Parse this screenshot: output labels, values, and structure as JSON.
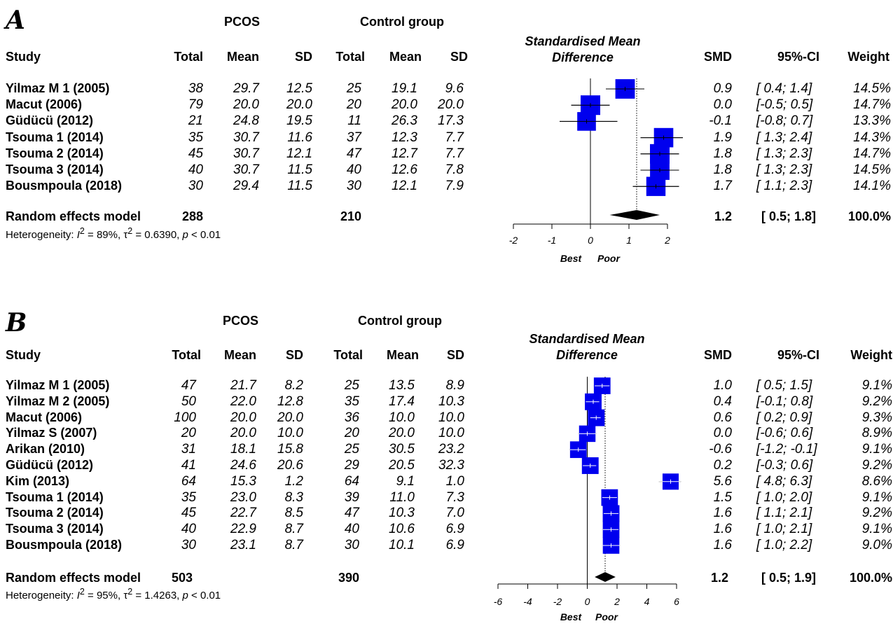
{
  "panels": [
    {
      "letter": "A",
      "group1": "PCOS",
      "group2": "Control group",
      "headers": {
        "study": "Study",
        "total1": "Total",
        "mean1": "Mean",
        "sd1": "SD",
        "total2": "Total",
        "mean2": "Mean",
        "sd2": "SD",
        "plot_line1": "Standardised Mean",
        "plot_line2": "Difference",
        "smd": "SMD",
        "ci": "95%-CI",
        "weight": "Weight"
      },
      "rows": [
        {
          "study": "Yilmaz M 1 (2005)",
          "t1": "38",
          "m1": "29.7",
          "s1": "12.5",
          "t2": "25",
          "m2": "19.1",
          "s2": "9.6",
          "smd": "0.9",
          "ci": "[ 0.4; 1.4]",
          "w": "14.5%"
        },
        {
          "study": "Macut (2006)",
          "t1": "79",
          "m1": "20.0",
          "s1": "20.0",
          "t2": "20",
          "m2": "20.0",
          "s2": "20.0",
          "smd": "0.0",
          "ci": "[-0.5; 0.5]",
          "w": "14.7%"
        },
        {
          "study": "Güdücü (2012)",
          "t1": "21",
          "m1": "24.8",
          "s1": "19.5",
          "t2": "11",
          "m2": "26.3",
          "s2": "17.3",
          "smd": "-0.1",
          "ci": "[-0.8; 0.7]",
          "w": "13.3%"
        },
        {
          "study": "Tsouma 1 (2014)",
          "t1": "35",
          "m1": "30.7",
          "s1": "11.6",
          "t2": "37",
          "m2": "12.3",
          "s2": "7.7",
          "smd": "1.9",
          "ci": "[ 1.3; 2.4]",
          "w": "14.3%"
        },
        {
          "study": "Tsouma 2 (2014)",
          "t1": "45",
          "m1": "30.7",
          "s1": "12.1",
          "t2": "47",
          "m2": "12.7",
          "s2": "7.7",
          "smd": "1.8",
          "ci": "[ 1.3; 2.3]",
          "w": "14.7%"
        },
        {
          "study": "Tsouma 3 (2014)",
          "t1": "40",
          "m1": "30.7",
          "s1": "11.5",
          "t2": "40",
          "m2": "12.6",
          "s2": "7.8",
          "smd": "1.8",
          "ci": "[ 1.3; 2.3]",
          "w": "14.5%"
        },
        {
          "study": "Bousmpoula  (2018)",
          "t1": "30",
          "m1": "29.4",
          "s1": "11.5",
          "t2": "30",
          "m2": "12.1",
          "s2": "7.9",
          "smd": "1.7",
          "ci": "[ 1.1; 2.3]",
          "w": "14.1%"
        }
      ],
      "model": {
        "label": "Random effects model",
        "t1": "288",
        "t2": "210",
        "smd": "1.2",
        "ci": "[ 0.5; 1.8]",
        "w": "100.0%"
      },
      "heterogeneity": {
        "prefix": "Heterogeneity: ",
        "i2_symbol": "I",
        "i2_value": " = 89%, ",
        "tau_symbol": "τ",
        "tau_value": " = 0.6390, ",
        "p_symbol": "p",
        "p_value": " < 0.01",
        "sup": "2"
      },
      "axis_labels": {
        "left": "Best",
        "right": "Poor"
      }
    },
    {
      "letter": "B",
      "group1": "PCOS",
      "group2": "Control group",
      "headers": {
        "study": "Study",
        "total1": "Total",
        "mean1": "Mean",
        "sd1": "SD",
        "total2": "Total",
        "mean2": "Mean",
        "sd2": "SD",
        "plot_line1": "Standardised Mean",
        "plot_line2": "Difference",
        "smd": "SMD",
        "ci": "95%-CI",
        "weight": "Weight"
      },
      "rows": [
        {
          "study": "Yilmaz M 1 (2005)",
          "t1": "47",
          "m1": "21.7",
          "s1": "8.2",
          "t2": "25",
          "m2": "13.5",
          "s2": "8.9",
          "smd": "1.0",
          "ci": "[ 0.5; 1.5]",
          "w": "9.1%"
        },
        {
          "study": "Yilmaz M 2 (2005)",
          "t1": "50",
          "m1": "22.0",
          "s1": "12.8",
          "t2": "35",
          "m2": "17.4",
          "s2": "10.3",
          "smd": "0.4",
          "ci": "[-0.1; 0.8]",
          "w": "9.2%"
        },
        {
          "study": "Macut (2006)",
          "t1": "100",
          "m1": "20.0",
          "s1": "20.0",
          "t2": "36",
          "m2": "10.0",
          "s2": "10.0",
          "smd": "0.6",
          "ci": "[ 0.2; 0.9]",
          "w": "9.3%"
        },
        {
          "study": "Yilmaz S (2007)",
          "t1": "20",
          "m1": "20.0",
          "s1": "10.0",
          "t2": "20",
          "m2": "20.0",
          "s2": "10.0",
          "smd": "0.0",
          "ci": "[-0.6; 0.6]",
          "w": "8.9%"
        },
        {
          "study": "Arikan (2010)",
          "t1": "31",
          "m1": "18.1",
          "s1": "15.8",
          "t2": "25",
          "m2": "30.5",
          "s2": "23.2",
          "smd": "-0.6",
          "ci": "[-1.2; -0.1]",
          "w": "9.1%"
        },
        {
          "study": "Güdücü (2012)",
          "t1": "41",
          "m1": "24.6",
          "s1": "20.6",
          "t2": "29",
          "m2": "20.5",
          "s2": "32.3",
          "smd": "0.2",
          "ci": "[-0.3; 0.6]",
          "w": "9.2%"
        },
        {
          "study": "Kim (2013)",
          "t1": "64",
          "m1": "15.3",
          "s1": "1.2",
          "t2": "64",
          "m2": "9.1",
          "s2": "1.0",
          "smd": "5.6",
          "ci": "[ 4.8; 6.3]",
          "w": "8.6%"
        },
        {
          "study": "Tsouma 1 (2014)",
          "t1": "35",
          "m1": "23.0",
          "s1": "8.3",
          "t2": "39",
          "m2": "11.0",
          "s2": "7.3",
          "smd": "1.5",
          "ci": "[ 1.0; 2.0]",
          "w": "9.1%"
        },
        {
          "study": "Tsouma 2 (2014)",
          "t1": "45",
          "m1": "22.7",
          "s1": "8.5",
          "t2": "47",
          "m2": "10.3",
          "s2": "7.0",
          "smd": "1.6",
          "ci": "[ 1.1; 2.1]",
          "w": "9.2%"
        },
        {
          "study": "Tsouma 3 (2014)",
          "t1": "40",
          "m1": "22.9",
          "s1": "8.7",
          "t2": "40",
          "m2": "10.6",
          "s2": "6.9",
          "smd": "1.6",
          "ci": "[ 1.0; 2.1]",
          "w": "9.1%"
        },
        {
          "study": "Bousmpoula (2018)",
          "t1": "30",
          "m1": "23.1",
          "s1": "8.7",
          "t2": "30",
          "m2": "10.1",
          "s2": "6.9",
          "smd": "1.6",
          "ci": "[ 1.0; 2.2]",
          "w": "9.0%"
        }
      ],
      "model": {
        "label": "Random effects model",
        "t1": "503",
        "t2": "390",
        "smd": "1.2",
        "ci": "[ 0.5; 1.9]",
        "w": "100.0%"
      },
      "heterogeneity": {
        "prefix": "Heterogeneity: ",
        "i2_symbol": "I",
        "i2_value": " = 95%, ",
        "tau_symbol": "τ",
        "tau_value": " = 1.4263, ",
        "p_symbol": "p",
        "p_value": " < 0.01",
        "sup": "2"
      },
      "axis_labels": {
        "left": "Best",
        "right": "Poor"
      }
    }
  ],
  "chart_data": [
    {
      "type": "forest",
      "xlim": [
        -2,
        2
      ],
      "ticks": [
        -2,
        -1,
        0,
        1,
        2
      ],
      "null_line": 0,
      "pooled": {
        "est": 1.2,
        "lo": 0.5,
        "hi": 1.8
      },
      "studies": [
        {
          "est": 0.9,
          "lo": 0.4,
          "hi": 1.4,
          "weight": 14.5
        },
        {
          "est": 0.0,
          "lo": -0.5,
          "hi": 0.5,
          "weight": 14.7
        },
        {
          "est": -0.1,
          "lo": -0.8,
          "hi": 0.7,
          "weight": 13.3
        },
        {
          "est": 1.9,
          "lo": 1.3,
          "hi": 2.4,
          "weight": 14.3
        },
        {
          "est": 1.8,
          "lo": 1.3,
          "hi": 2.3,
          "weight": 14.7
        },
        {
          "est": 1.8,
          "lo": 1.3,
          "hi": 2.3,
          "weight": 14.5
        },
        {
          "est": 1.7,
          "lo": 1.1,
          "hi": 2.3,
          "weight": 14.1
        }
      ]
    },
    {
      "type": "forest",
      "xlim": [
        -6,
        6
      ],
      "ticks": [
        -6,
        -4,
        -2,
        0,
        2,
        4,
        6
      ],
      "null_line": 0,
      "pooled": {
        "est": 1.2,
        "lo": 0.5,
        "hi": 1.9
      },
      "studies": [
        {
          "est": 1.0,
          "lo": 0.5,
          "hi": 1.5,
          "weight": 9.1
        },
        {
          "est": 0.4,
          "lo": -0.1,
          "hi": 0.8,
          "weight": 9.2
        },
        {
          "est": 0.6,
          "lo": 0.2,
          "hi": 0.9,
          "weight": 9.3
        },
        {
          "est": 0.0,
          "lo": -0.6,
          "hi": 0.6,
          "weight": 8.9
        },
        {
          "est": -0.6,
          "lo": -1.2,
          "hi": -0.1,
          "weight": 9.1
        },
        {
          "est": 0.2,
          "lo": -0.3,
          "hi": 0.6,
          "weight": 9.2
        },
        {
          "est": 5.6,
          "lo": 4.8,
          "hi": 6.3,
          "weight": 8.6
        },
        {
          "est": 1.5,
          "lo": 1.0,
          "hi": 2.0,
          "weight": 9.1
        },
        {
          "est": 1.6,
          "lo": 1.1,
          "hi": 2.1,
          "weight": 9.2
        },
        {
          "est": 1.6,
          "lo": 1.0,
          "hi": 2.1,
          "weight": 9.1
        },
        {
          "est": 1.6,
          "lo": 1.0,
          "hi": 2.2,
          "weight": 9.0
        }
      ]
    }
  ]
}
